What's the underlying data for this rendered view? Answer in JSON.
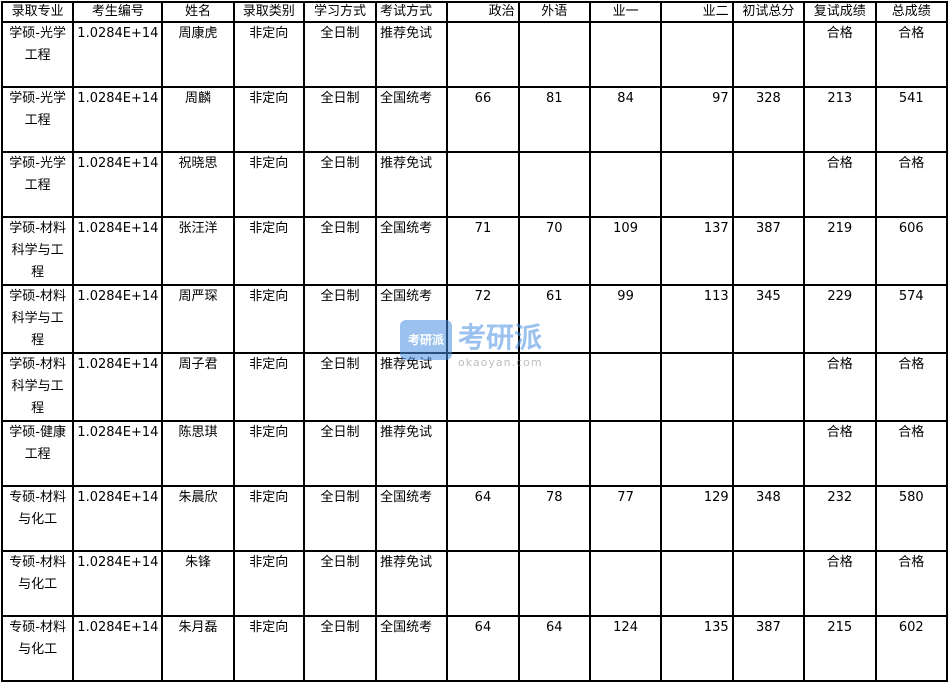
{
  "headers": [
    "录取专业",
    "考生编号",
    "姓名",
    "录取类别",
    "学习方式",
    "考试方式",
    "政治",
    "外语",
    "业一",
    "业二",
    "初试总分",
    "复试成绩",
    "总成绩"
  ],
  "rows": [
    [
      "学硕-光学工程",
      "1.0284E+14",
      "周康虎",
      "非定向",
      "全日制",
      "推荐免试",
      "",
      "",
      "",
      "",
      "",
      "合格",
      "合格"
    ],
    [
      "学硕-光学工程",
      "1.0284E+14",
      "周麟",
      "非定向",
      "全日制",
      "全国统考",
      "66",
      "81",
      "84",
      "97",
      "328",
      "213",
      "541"
    ],
    [
      "学硕-光学工程",
      "1.0284E+14",
      "祝晓思",
      "非定向",
      "全日制",
      "推荐免试",
      "",
      "",
      "",
      "",
      "",
      "合格",
      "合格"
    ],
    [
      "学硕-材料科学与工程",
      "1.0284E+14",
      "张汪洋",
      "非定向",
      "全日制",
      "全国统考",
      "71",
      "70",
      "109",
      "137",
      "387",
      "219",
      "606"
    ],
    [
      "学硕-材料科学与工程",
      "1.0284E+14",
      "周严琛",
      "非定向",
      "全日制",
      "全国统考",
      "72",
      "61",
      "99",
      "113",
      "345",
      "229",
      "574"
    ],
    [
      "学硕-材料科学与工程",
      "1.0284E+14",
      "周子君",
      "非定向",
      "全日制",
      "推荐免试",
      "",
      "",
      "",
      "",
      "",
      "合格",
      "合格"
    ],
    [
      "学硕-健康工程",
      "1.0284E+14",
      "陈思琪",
      "非定向",
      "全日制",
      "推荐免试",
      "",
      "",
      "",
      "",
      "",
      "合格",
      "合格"
    ],
    [
      "专硕-材料与化工",
      "1.0284E+14",
      "朱晨欣",
      "非定向",
      "全日制",
      "全国统考",
      "64",
      "78",
      "77",
      "129",
      "348",
      "232",
      "580"
    ],
    [
      "专硕-材料与化工",
      "1.0284E+14",
      "朱锋",
      "非定向",
      "全日制",
      "推荐免试",
      "",
      "",
      "",
      "",
      "",
      "合格",
      "合格"
    ],
    [
      "专硕-材料与化工",
      "1.0284E+14",
      "朱月磊",
      "非定向",
      "全日制",
      "全国统考",
      "64",
      "64",
      "124",
      "135",
      "387",
      "215",
      "602"
    ]
  ],
  "watermark": {
    "logo_text": "考研派",
    "url": "okaoyan.com",
    "color": "#4a90e2"
  }
}
